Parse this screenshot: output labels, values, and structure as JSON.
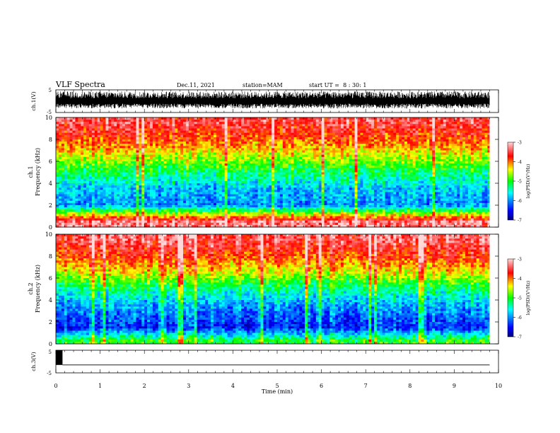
{
  "chart_data": [
    {
      "type": "line",
      "panel": "waveform-ch1",
      "ylabel": "ch.1(V)",
      "ylim": [
        -5,
        5
      ],
      "y_ticks": [
        "5",
        "-5"
      ],
      "xlim": [
        0,
        10
      ],
      "title": "VLF Spectra",
      "header": {
        "date": "Dec.11, 2021",
        "station": "station=MAM",
        "start": "start UT =  8 : 30: 1"
      },
      "description_values": {
        "envelope_min": -3.2,
        "envelope_max": 4.3
      }
    },
    {
      "type": "heatmap",
      "panel": "spectrogram-ch1",
      "ylabel_top": "ch.1",
      "ylabel": "Frequency (kHz)",
      "ylim": [
        0,
        10
      ],
      "y_ticks": [
        "0",
        "2",
        "4",
        "6",
        "8",
        "10"
      ],
      "xlim": [
        0,
        10
      ],
      "colorbar": {
        "label": "log(PSD)(V²/Hz)",
        "range": [
          -7,
          -3
        ],
        "ticks": [
          "-3",
          "-4",
          "-5",
          "-6",
          "-7"
        ]
      },
      "band_levels_kHz": [
        {
          "freq": 9.5,
          "value": -3.5
        },
        {
          "freq": 8.0,
          "value": -3.9
        },
        {
          "freq": 6.5,
          "value": -4.5
        },
        {
          "freq": 5.0,
          "value": -5.2
        },
        {
          "freq": 3.5,
          "value": -5.8
        },
        {
          "freq": 2.0,
          "value": -6.0
        },
        {
          "freq": 0.5,
          "value": -3.3
        }
      ]
    },
    {
      "type": "heatmap",
      "panel": "spectrogram-ch2",
      "ylabel_top": "ch.2",
      "ylabel": "Frequency (kHz)",
      "ylim": [
        0,
        10
      ],
      "y_ticks": [
        "0",
        "2",
        "4",
        "6",
        "8",
        "10"
      ],
      "xlim": [
        0,
        10
      ],
      "colorbar": {
        "label": "log(PSD)(V²/Hz)",
        "range": [
          -7,
          -3
        ],
        "ticks": [
          "-3",
          "-4",
          "-5",
          "-6",
          "-7"
        ]
      },
      "band_levels_kHz": [
        {
          "freq": 9.5,
          "value": -3.4
        },
        {
          "freq": 8.0,
          "value": -3.8
        },
        {
          "freq": 6.5,
          "value": -4.4
        },
        {
          "freq": 5.0,
          "value": -5.3
        },
        {
          "freq": 3.5,
          "value": -5.9
        },
        {
          "freq": 1.5,
          "value": -6.4
        },
        {
          "freq": 0.3,
          "value": -5.0
        }
      ]
    },
    {
      "type": "line",
      "panel": "waveform-ch3",
      "ylabel": "ch.3(V)",
      "ylim": [
        -5,
        5
      ],
      "y_ticks": [
        "5",
        "-5"
      ],
      "xlim": [
        0,
        10
      ],
      "xlabel": "Time (min)",
      "x_ticks": [
        "0",
        "1",
        "2",
        "3",
        "4",
        "5",
        "6",
        "7",
        "8",
        "9",
        "10"
      ],
      "segments": [
        {
          "x_start": 0.0,
          "x_end": 0.15,
          "y_min": -1.5,
          "y_max": 5
        },
        {
          "x_start": 0.15,
          "x_end": 9.8,
          "y_min": -1.5,
          "y_max": -1.5
        }
      ]
    }
  ],
  "colors": {
    "background": "#ffffff",
    "axis": "#000000",
    "colormap": [
      "#000080",
      "#0000ff",
      "#00ffff",
      "#00ff00",
      "#ffff00",
      "#ff0000",
      "#ffc0c0"
    ]
  }
}
